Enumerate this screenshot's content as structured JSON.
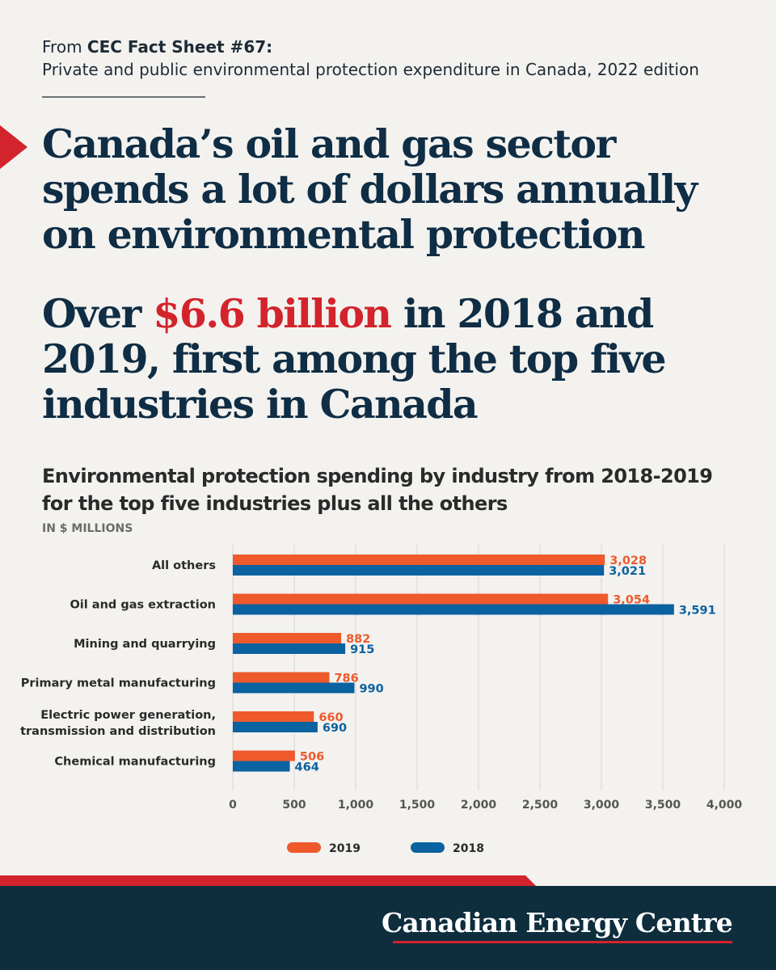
{
  "source": {
    "lead": "From ",
    "sheet": "CEC Fact Sheet #67:",
    "description": "Private and public environmental protection expenditure in Canada, 2022 edition"
  },
  "headline": "Canada’s oil and gas sector spends a lot of dollars annually on environmental protection",
  "subhead": {
    "before": "Over ",
    "highlight": "$6.6 billion",
    "after": " in 2018 and 2019, first among the top five industries in Canada"
  },
  "colors": {
    "accent_red": "#d3232c",
    "navy": "#0f2d44",
    "series_2019": "#ee5a2c",
    "series_2018": "#0a62a0",
    "footer_bg": "#0e2d3d"
  },
  "chart_data": {
    "type": "bar",
    "orientation": "horizontal",
    "title": "Environmental protection spending by industry from 2018-2019 for the top five industries plus all the others",
    "units": "IN $ MILLIONS",
    "categories": [
      "All others",
      "Oil and gas extraction",
      "Mining and quarrying",
      "Primary metal manufacturing",
      "Electric power generation, transmission and distribution",
      "Chemical manufacturing"
    ],
    "series": [
      {
        "name": "2019",
        "color": "#ee5a2c",
        "values": [
          3028,
          3054,
          882,
          786,
          660,
          506
        ],
        "labels": [
          "3,028",
          "3,054",
          "882",
          "786",
          "660",
          "506"
        ]
      },
      {
        "name": "2018",
        "color": "#0a62a0",
        "values": [
          3021,
          3591,
          915,
          990,
          690,
          464
        ],
        "labels": [
          "3,021",
          "3,591",
          "915",
          "990",
          "690",
          "464"
        ]
      }
    ],
    "xlim": [
      0,
      4000
    ],
    "xticks": [
      0,
      500,
      1000,
      1500,
      2000,
      2500,
      3000,
      3500,
      4000
    ],
    "xtick_labels": [
      "0",
      "500",
      "1,000",
      "1,500",
      "2,000",
      "2,500",
      "3,000",
      "3,500",
      "4,000"
    ],
    "grid": true,
    "legend": "bottom"
  },
  "footer": {
    "brand": "Canadian Energy Centre"
  }
}
